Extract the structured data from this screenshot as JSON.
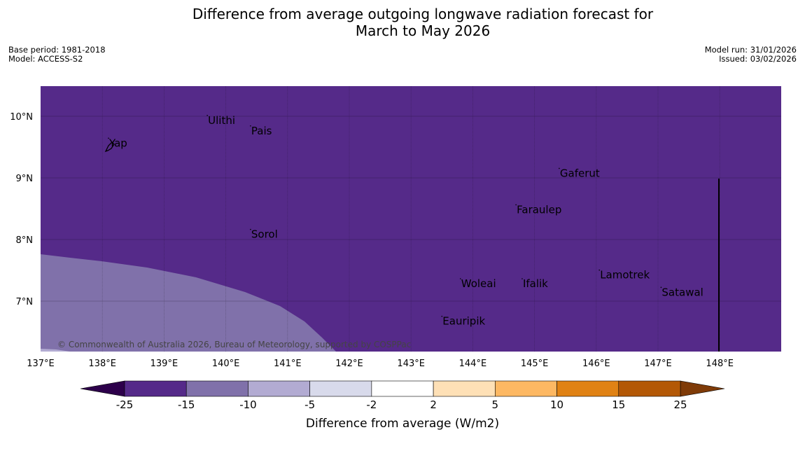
{
  "header": {
    "title_line1": "Difference from average outgoing longwave radiation forecast for",
    "title_line2": "March to May 2026",
    "base_period": "Base period: 1981-2018",
    "model": "Model: ACCESS-S2",
    "model_run": "Model run: 31/01/2026",
    "issued": "Issued: 03/02/2026"
  },
  "map": {
    "lon_range": [
      137,
      149
    ],
    "lat_range": [
      6.2,
      10.5
    ],
    "lon_ticks": [
      "137°E",
      "138°E",
      "139°E",
      "140°E",
      "141°E",
      "142°E",
      "143°E",
      "144°E",
      "145°E",
      "146°E",
      "147°E",
      "148°E"
    ],
    "lat_ticks": [
      "10°N",
      "9°N",
      "8°N",
      "7°N"
    ],
    "places": [
      {
        "name": "Ulithi",
        "lon": 139.7,
        "lat": 9.9
      },
      {
        "name": "Pais",
        "lon": 140.4,
        "lat": 9.73
      },
      {
        "name": "Yap",
        "lon": 138.1,
        "lat": 9.53
      },
      {
        "name": "Gaferut",
        "lon": 145.4,
        "lat": 9.04
      },
      {
        "name": "Faraulep",
        "lon": 144.7,
        "lat": 8.45
      },
      {
        "name": "Sorol",
        "lon": 140.4,
        "lat": 8.05
      },
      {
        "name": "Lamotrek",
        "lon": 146.05,
        "lat": 7.39
      },
      {
        "name": "Woleai",
        "lon": 143.8,
        "lat": 7.25
      },
      {
        "name": "Ifalik",
        "lon": 144.8,
        "lat": 7.25
      },
      {
        "name": "Satawal",
        "lon": 147.05,
        "lat": 7.11
      },
      {
        "name": "Eauripik",
        "lon": 143.5,
        "lat": 6.64
      }
    ],
    "copyright": "© Commonwealth of Australia 2026, Bureau of Meteorology, supported by COSPPac",
    "background_color": "#552a89",
    "anomaly_color": "#8071aa",
    "lighter_color": "#b2abd2"
  },
  "colorbar": {
    "title": "Difference from average (W/m2)",
    "ticks": [
      "-25",
      "-15",
      "-10",
      "-5",
      "-2",
      "2",
      "5",
      "10",
      "15",
      "25"
    ],
    "colors": [
      "#552a89",
      "#8071aa",
      "#b2abd2",
      "#d8daeb",
      "#ffffff",
      "#fee0b6",
      "#fdb863",
      "#e08214",
      "#b35806"
    ],
    "under_color": "#2d004b",
    "over_color": "#7f3b08"
  }
}
